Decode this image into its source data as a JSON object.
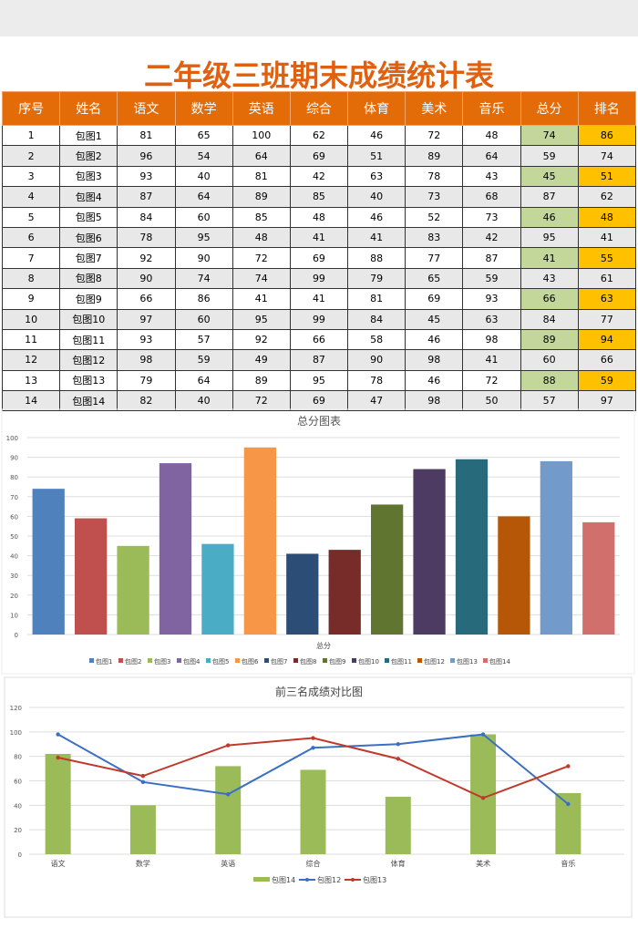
{
  "title": "二年级三班期末成绩统计表",
  "table": {
    "headers": [
      "序号",
      "姓名",
      "语文",
      "数学",
      "英语",
      "综合",
      "体育",
      "美术",
      "音乐",
      "总分",
      "排名"
    ],
    "rows": [
      [
        "1",
        "包图1",
        "81",
        "65",
        "100",
        "62",
        "46",
        "72",
        "48",
        "74",
        "86"
      ],
      [
        "2",
        "包图2",
        "96",
        "54",
        "64",
        "69",
        "51",
        "89",
        "64",
        "59",
        "74"
      ],
      [
        "3",
        "包图3",
        "93",
        "40",
        "81",
        "42",
        "63",
        "78",
        "43",
        "45",
        "51"
      ],
      [
        "4",
        "包图4",
        "87",
        "64",
        "89",
        "85",
        "40",
        "73",
        "68",
        "87",
        "62"
      ],
      [
        "5",
        "包图5",
        "84",
        "60",
        "85",
        "48",
        "46",
        "52",
        "73",
        "46",
        "48"
      ],
      [
        "6",
        "包图6",
        "78",
        "95",
        "48",
        "41",
        "41",
        "83",
        "42",
        "95",
        "41"
      ],
      [
        "7",
        "包图7",
        "92",
        "90",
        "72",
        "69",
        "88",
        "77",
        "87",
        "41",
        "55"
      ],
      [
        "8",
        "包图8",
        "90",
        "74",
        "74",
        "99",
        "79",
        "65",
        "59",
        "43",
        "61"
      ],
      [
        "9",
        "包图9",
        "66",
        "86",
        "41",
        "41",
        "81",
        "69",
        "93",
        "66",
        "63"
      ],
      [
        "10",
        "包图10",
        "97",
        "60",
        "95",
        "99",
        "84",
        "45",
        "63",
        "84",
        "77"
      ],
      [
        "11",
        "包图11",
        "93",
        "57",
        "92",
        "66",
        "58",
        "46",
        "98",
        "89",
        "94"
      ],
      [
        "12",
        "包图12",
        "98",
        "59",
        "49",
        "87",
        "90",
        "98",
        "41",
        "60",
        "66"
      ],
      [
        "13",
        "包图13",
        "79",
        "64",
        "89",
        "95",
        "78",
        "46",
        "72",
        "88",
        "59"
      ],
      [
        "14",
        "包图14",
        "82",
        "40",
        "72",
        "69",
        "47",
        "98",
        "50",
        "57",
        "97"
      ]
    ],
    "highlight_colors": {
      "total": "#c4d79b",
      "rank": "#ffc000",
      "header": "#e36c09"
    }
  },
  "chart_data": [
    {
      "type": "bar",
      "title": "总分图表",
      "xlabel": "总分",
      "ylim": [
        0,
        100
      ],
      "yticks": [
        0,
        10,
        20,
        30,
        40,
        50,
        60,
        70,
        80,
        90,
        100
      ],
      "grid": true,
      "legend": "bottom",
      "series": [
        {
          "name": "包图1",
          "value": 74,
          "color": "#4f81bd"
        },
        {
          "name": "包图2",
          "value": 59,
          "color": "#c0504d"
        },
        {
          "name": "包图3",
          "value": 45,
          "color": "#9bbb59"
        },
        {
          "name": "包图4",
          "value": 87,
          "color": "#8064a2"
        },
        {
          "name": "包图5",
          "value": 46,
          "color": "#4bacc6"
        },
        {
          "name": "包图6",
          "value": 95,
          "color": "#f79646"
        },
        {
          "name": "包图7",
          "value": 41,
          "color": "#2c4d75"
        },
        {
          "name": "包图8",
          "value": 43,
          "color": "#772c2a"
        },
        {
          "name": "包图9",
          "value": 66,
          "color": "#5f7530"
        },
        {
          "name": "包图10",
          "value": 84,
          "color": "#4d3b62"
        },
        {
          "name": "包图11",
          "value": 89,
          "color": "#276a7c"
        },
        {
          "name": "包图12",
          "value": 60,
          "color": "#b65708"
        },
        {
          "name": "包图13",
          "value": 88,
          "color": "#729aca"
        },
        {
          "name": "包图14",
          "value": 57,
          "color": "#d16f6c"
        }
      ]
    },
    {
      "type": "bar+line",
      "title": "前三名成绩对比图",
      "categories": [
        "语文",
        "数学",
        "英语",
        "综合",
        "体育",
        "美术",
        "音乐"
      ],
      "ylim": [
        0,
        120
      ],
      "yticks": [
        0,
        20,
        40,
        60,
        80,
        100,
        120
      ],
      "grid": true,
      "legend": "bottom",
      "series": [
        {
          "name": "包图14",
          "kind": "bar",
          "color": "#9bbb59",
          "values": [
            82,
            40,
            72,
            69,
            47,
            98,
            50
          ]
        },
        {
          "name": "包图12",
          "kind": "line",
          "color": "#3a6fc4",
          "values": [
            98,
            59,
            49,
            87,
            90,
            98,
            41
          ]
        },
        {
          "name": "包图13",
          "kind": "line",
          "color": "#c0392b",
          "values": [
            79,
            64,
            89,
            95,
            78,
            46,
            72
          ]
        }
      ]
    }
  ]
}
